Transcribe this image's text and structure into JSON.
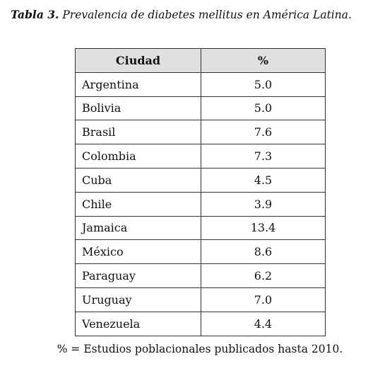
{
  "title": {
    "label": "Tabla 3.",
    "text": "Prevalencia de diabetes mellitus en América Latina."
  },
  "table": {
    "header": [
      "Ciudad",
      "%"
    ],
    "rows": [
      [
        "Argentina",
        "5.0"
      ],
      [
        "Bolivia",
        "5.0"
      ],
      [
        "Brasil",
        "7.6"
      ],
      [
        "Colombia",
        "7.3"
      ],
      [
        "Cuba",
        "4.5"
      ],
      [
        "Chile",
        "3.9"
      ],
      [
        "Jamaica",
        "13.4"
      ],
      [
        "México",
        "8.6"
      ],
      [
        "Paraguay",
        "6.2"
      ],
      [
        "Uruguay",
        "7.0"
      ],
      [
        "Venezuela",
        "4.4"
      ]
    ]
  },
  "footnote": "% = Estudios poblacionales publicados hasta 2010."
}
